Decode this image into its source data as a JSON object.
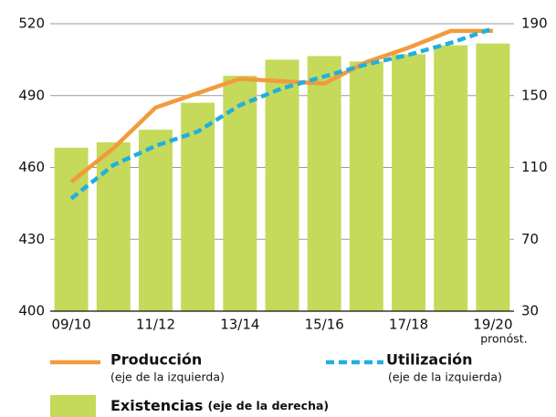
{
  "chart_data": {
    "type": "bar_line",
    "categories": [
      "09/10",
      null,
      "11/12",
      null,
      "13/14",
      null,
      "15/16",
      null,
      "17/18",
      null,
      "19/20"
    ],
    "annotation": "pronóst.",
    "ylim": [
      400,
      520
    ],
    "yticks": [
      400,
      430,
      460,
      490,
      520
    ],
    "y2lim": [
      30,
      190
    ],
    "y2ticks": [
      30,
      70,
      110,
      150,
      190
    ],
    "grid": true,
    "series": [
      {
        "name": "Existencias",
        "note": "(eje de la derecha)",
        "type": "bar",
        "axis": "y2",
        "color": "#c5d95a",
        "values": [
          121,
          124,
          131,
          146,
          161,
          170,
          172,
          169,
          173,
          178,
          179
        ]
      },
      {
        "name": "Producción",
        "note": "(eje de la izquierda)",
        "type": "line",
        "axis": "y",
        "color": "#f39a3b",
        "values": [
          454,
          468,
          485,
          491,
          497,
          496,
          495,
          504,
          510,
          517,
          517
        ]
      },
      {
        "name": "Utilización",
        "note": "(eje de la izquierda)",
        "type": "dashed-line",
        "axis": "y",
        "color": "#1fb0e0",
        "values": [
          447,
          461,
          469,
          475,
          486,
          493,
          498,
          503,
          507,
          512,
          518
        ]
      }
    ]
  }
}
